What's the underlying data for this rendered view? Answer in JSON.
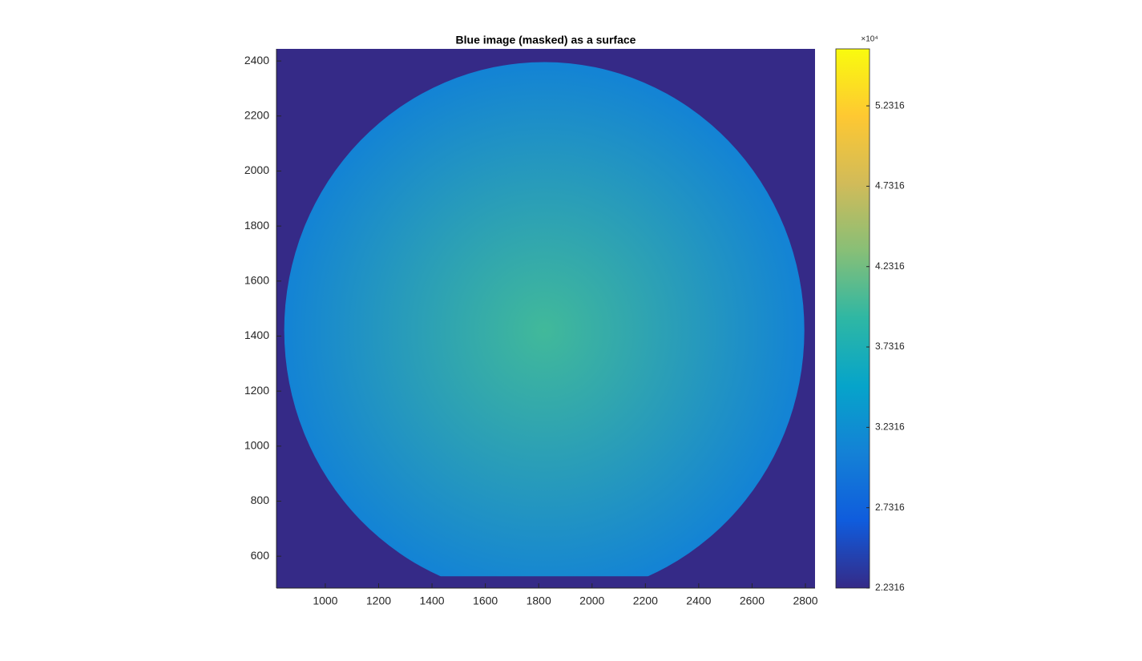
{
  "chart_data": {
    "type": "image",
    "title": "Blue image (masked) as a surface",
    "xlim": [
      817,
      2836
    ],
    "xticks": [
      1000,
      1200,
      1400,
      1600,
      1800,
      2000,
      2200,
      2400,
      2600,
      2800
    ],
    "ylim": [
      484,
      2444
    ],
    "yticks": [
      600,
      800,
      1000,
      1200,
      1400,
      1600,
      1800,
      2000,
      2200,
      2400
    ],
    "colorbar_lim": [
      2.2316,
      5.586
    ],
    "colorbar_ticks": [
      2.2316,
      2.7316,
      3.2316,
      3.7316,
      4.2316,
      4.7316,
      5.2316
    ],
    "colorbar_exponent": "×10⁴",
    "colormap": [
      "#352a87",
      "#0f5cdd",
      "#1481d6",
      "#06a4ca",
      "#2eb7a4",
      "#87bf77",
      "#d1bb59",
      "#fec832",
      "#f9fb0e"
    ],
    "surface": {
      "center": [
        1821,
        1421
      ],
      "radius": 975,
      "cutoff_y": 527,
      "masked_value": 2.2316,
      "center_value": 4.0,
      "rim_value": 3.1
    }
  }
}
